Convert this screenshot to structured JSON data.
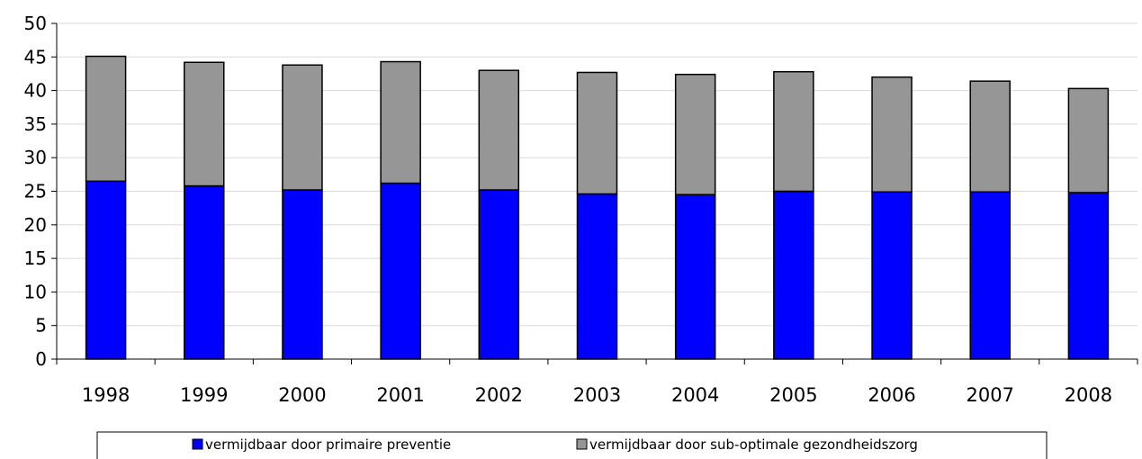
{
  "chart_data": {
    "type": "bar",
    "stacked": true,
    "title": "",
    "xlabel": "",
    "ylabel": "",
    "categories": [
      "1998",
      "1999",
      "2000",
      "2001",
      "2002",
      "2003",
      "2004",
      "2005",
      "2006",
      "2007",
      "2008"
    ],
    "series": [
      {
        "name": "vermijdbaar door primaire preventie",
        "color": "#0000ff",
        "values": [
          26.5,
          25.8,
          25.2,
          26.2,
          25.2,
          24.6,
          24.5,
          25.0,
          24.9,
          24.9,
          24.8
        ]
      },
      {
        "name": "vermijdbaar door sub-optimale gezondheidszorg",
        "color": "#969696",
        "values": [
          18.6,
          18.4,
          18.6,
          18.1,
          17.8,
          18.1,
          17.9,
          17.8,
          17.1,
          16.5,
          15.5
        ]
      }
    ],
    "ylim": [
      0,
      50
    ],
    "yticks": [
      "0",
      "5",
      "10",
      "15",
      "20",
      "25",
      "30",
      "35",
      "40",
      "45",
      "50"
    ],
    "grid": "horizontal",
    "legend_position": "bottom"
  }
}
